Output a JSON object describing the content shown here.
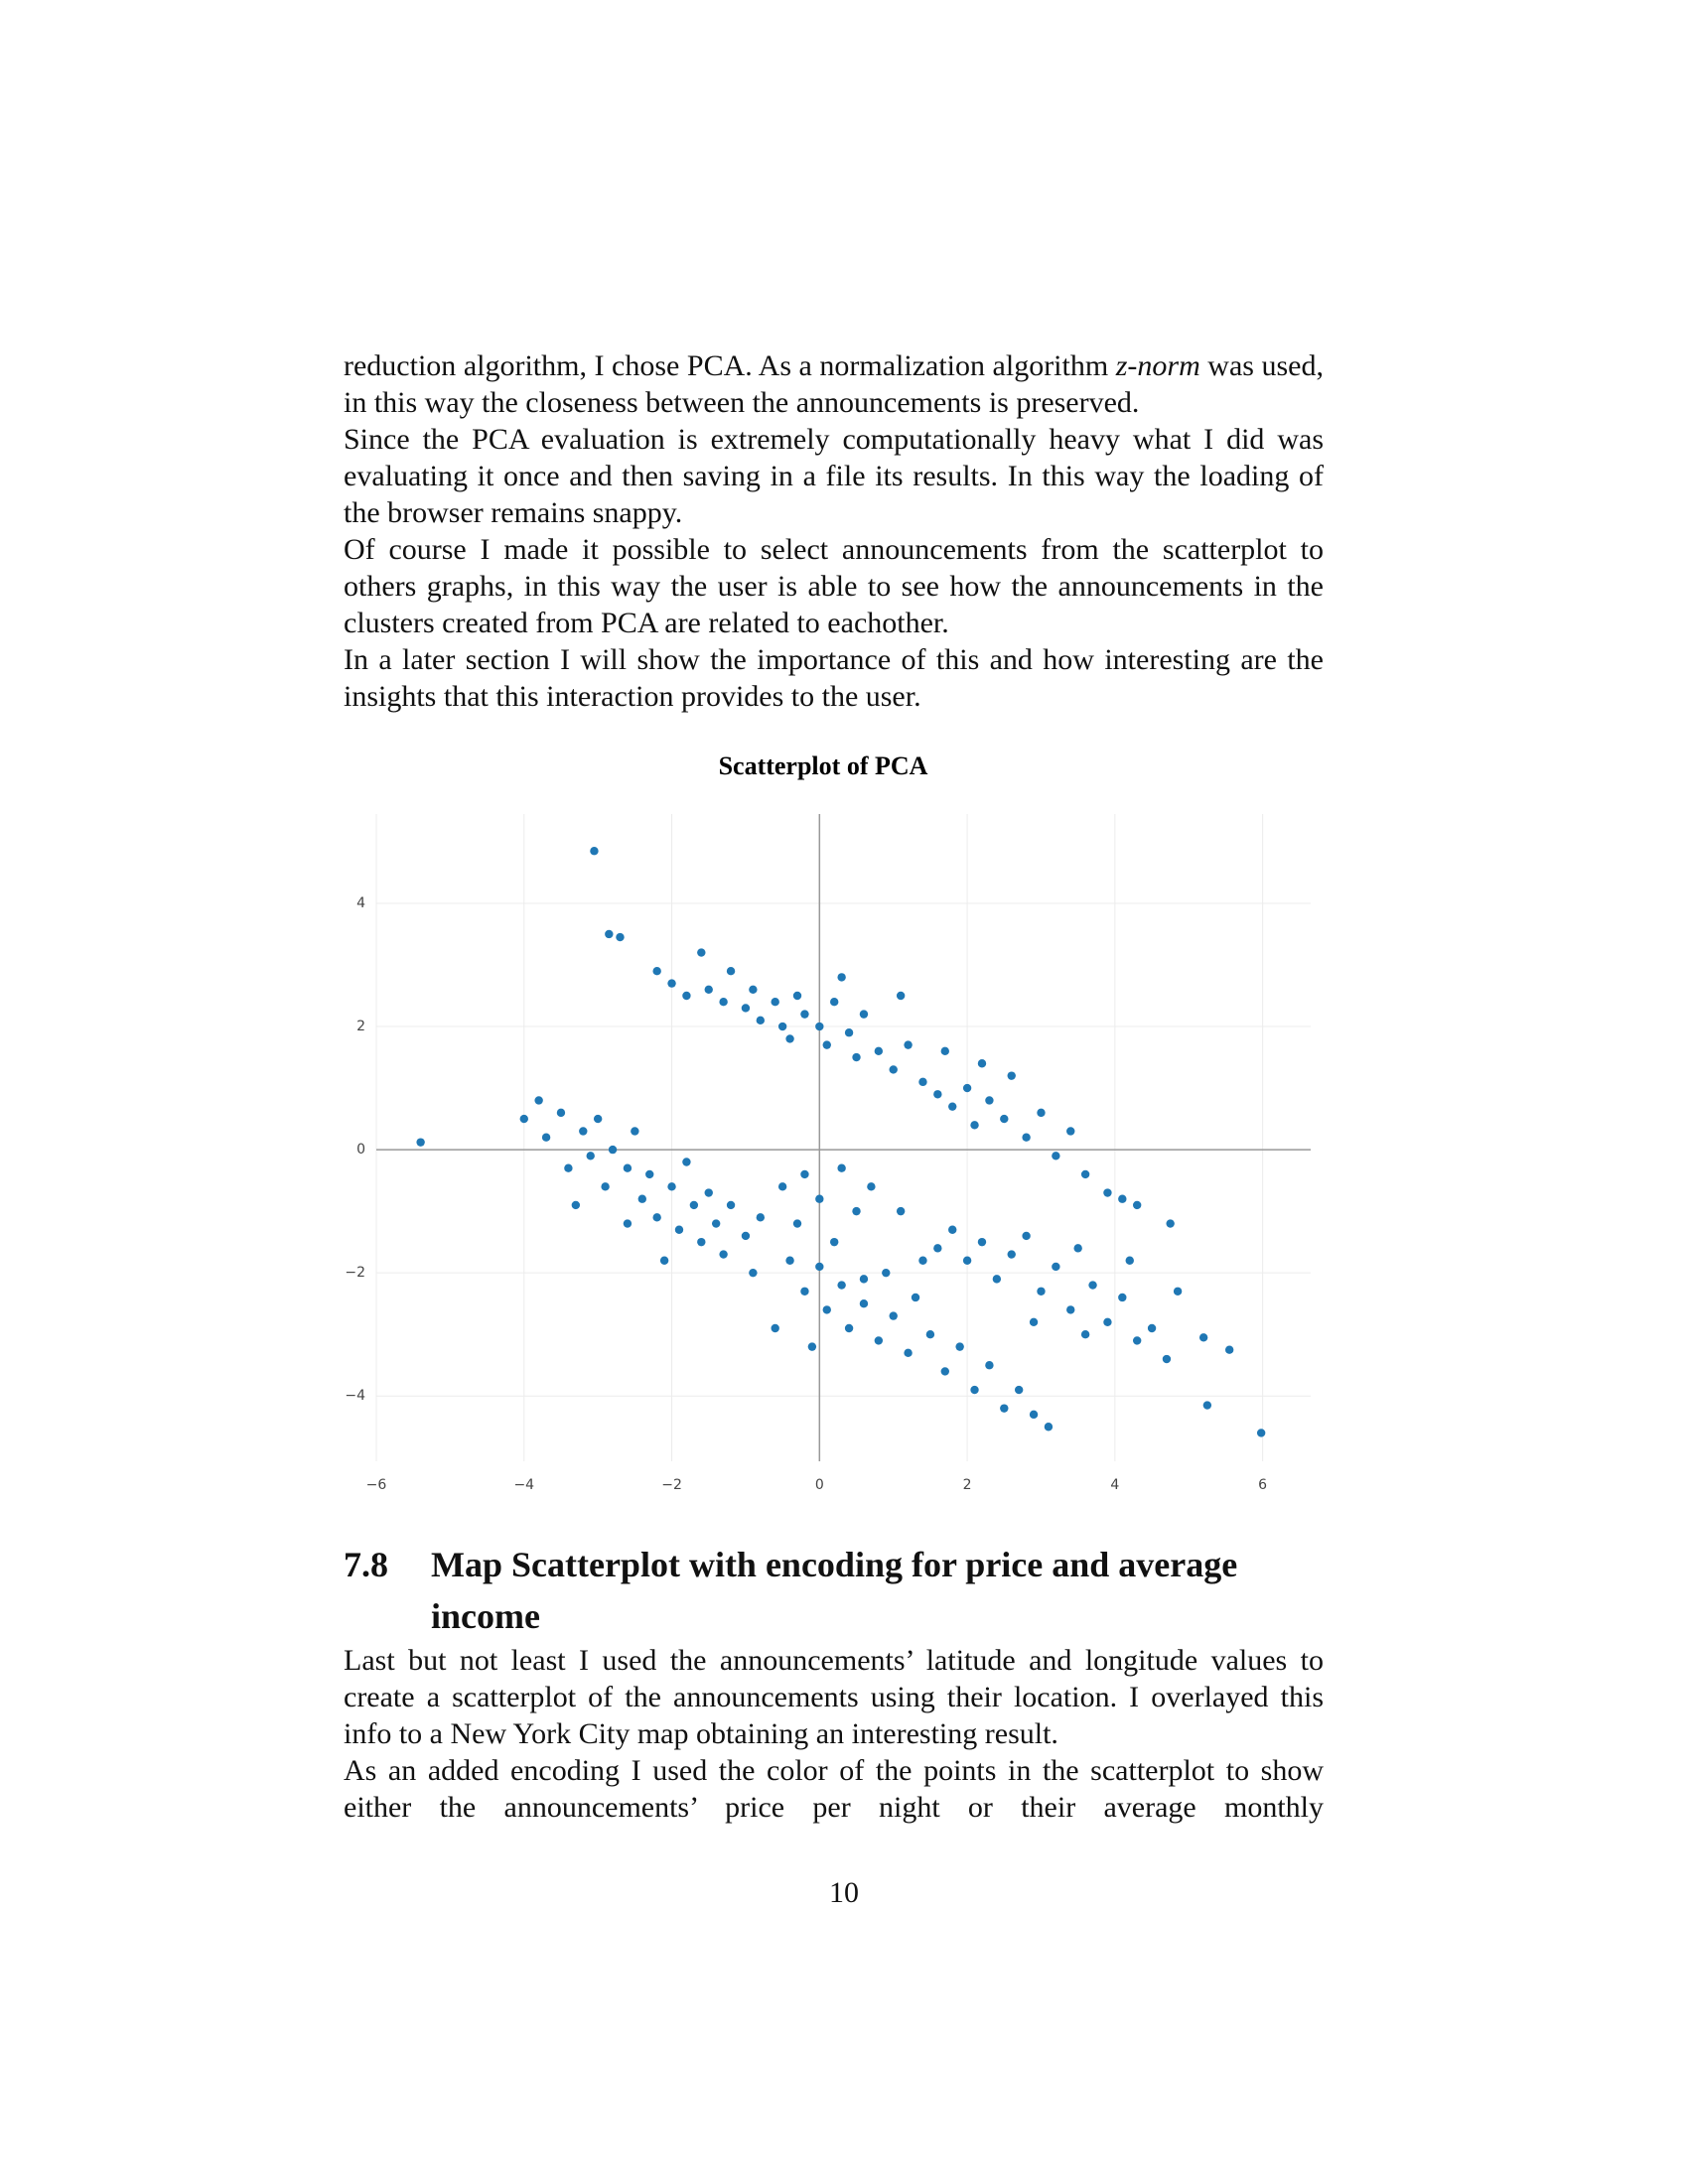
{
  "body": {
    "intro": {
      "before": "reduction algorithm, I chose PCA. As a normalization algorithm ",
      "emphasis": "z-norm",
      "after": " was used, in this way the closeness between the announcements is preserved."
    },
    "paragraphs": [
      "Since the PCA evaluation is extremely computationally heavy what I did was evaluating it once and then saving in a file its results. In this way the loading of the browser remains snappy.",
      "Of course I made it possible to select announcements from the scatterplot to others graphs, in this way the user is able to see how the announcements in the clusters created from PCA are related to eachother.",
      "In a later section I will show the importance of this and how interesting are the insights that this interaction provides to the user."
    ]
  },
  "chart_data": {
    "type": "scatter",
    "title": "Scatterplot of PCA",
    "color": "#1f77b4",
    "grid": true,
    "zeroline": true,
    "xlim": [
      -6,
      6.65
    ],
    "ylim": [
      -5.06,
      5.45
    ],
    "xticks": [
      {
        "value": -6,
        "label": "−6"
      },
      {
        "value": -4,
        "label": "−4"
      },
      {
        "value": -2,
        "label": "−2"
      },
      0,
      2,
      4,
      6
    ],
    "yticks": [
      {
        "value": -4,
        "label": "−4"
      },
      {
        "value": -2,
        "label": "−2"
      },
      0,
      2,
      4
    ],
    "x": [
      -3.05,
      -2.85,
      -2.7,
      -5.4,
      5.98,
      5.25,
      5.55,
      5.2,
      4.85,
      4.75,
      -2.2,
      -2.0,
      -1.8,
      -1.6,
      -1.5,
      -1.3,
      -1.2,
      -1.0,
      -0.9,
      -0.8,
      -0.6,
      -0.5,
      -0.4,
      -0.3,
      -0.2,
      0,
      0.1,
      0.2,
      0.3,
      0.4,
      0.5,
      0.6,
      0.8,
      1.0,
      1.1,
      1.2,
      1.4,
      1.6,
      1.7,
      1.8,
      2.0,
      2.1,
      2.2,
      2.3,
      2.5,
      2.6,
      2.8,
      3.0,
      3.2,
      3.4,
      3.6,
      3.9,
      4.1,
      4.3,
      -4.0,
      -3.8,
      -3.7,
      -3.5,
      -3.4,
      -3.2,
      -3.1,
      -3.0,
      -2.9,
      -2.8,
      -2.6,
      -2.5,
      -2.4,
      -2.3,
      -2.2,
      -2.0,
      -1.9,
      -1.8,
      -1.7,
      -1.6,
      -1.5,
      -1.4,
      -1.3,
      -1.2,
      -1.0,
      -0.9,
      -0.8,
      -2.6,
      -3.3,
      -2.1,
      -0.5,
      -0.3,
      -0.2,
      0,
      0.2,
      0.3,
      0.5,
      0.6,
      0.7,
      -0.4,
      -0.2,
      0,
      0.1,
      0.3,
      0.4,
      0.6,
      0.8,
      0.9,
      1.0,
      1.2,
      1.3,
      1.5,
      1.7,
      1.9,
      2.1,
      2.3,
      2.5,
      2.7,
      2.9,
      3.1,
      -0.6,
      -0.1,
      1.1,
      1.4,
      1.6,
      1.8,
      2.0,
      2.2,
      2.4,
      2.6,
      2.8,
      3.0,
      3.2,
      3.4,
      3.5,
      3.7,
      3.9,
      4.1,
      4.3,
      4.5,
      4.7,
      4.2,
      3.6,
      2.9
    ],
    "values": [
      4.85,
      3.5,
      3.45,
      0.12,
      -4.6,
      -4.15,
      -3.25,
      -3.05,
      -2.3,
      -1.2,
      2.9,
      2.7,
      2.5,
      3.2,
      2.6,
      2.4,
      2.9,
      2.3,
      2.6,
      2.1,
      2.4,
      2.0,
      1.8,
      2.5,
      2.2,
      2.0,
      1.7,
      2.4,
      2.8,
      1.9,
      1.5,
      2.2,
      1.6,
      1.3,
      2.5,
      1.7,
      1.1,
      0.9,
      1.6,
      0.7,
      1.0,
      0.4,
      1.4,
      0.8,
      0.5,
      1.2,
      0.2,
      0.6,
      -0.1,
      0.3,
      -0.4,
      -0.7,
      -0.8,
      -0.9,
      0.5,
      0.8,
      0.2,
      0.6,
      -0.3,
      0.3,
      -0.1,
      0.5,
      -0.6,
      0.0,
      -0.3,
      0.3,
      -0.8,
      -0.4,
      -1.1,
      -0.6,
      -1.3,
      -0.2,
      -0.9,
      -1.5,
      -0.7,
      -1.2,
      -1.7,
      -0.9,
      -1.4,
      -2.0,
      -1.1,
      -1.2,
      -0.9,
      -1.8,
      -0.6,
      -1.2,
      -0.4,
      -0.8,
      -1.5,
      -0.3,
      -1.0,
      -2.1,
      -0.6,
      -1.8,
      -2.3,
      -1.9,
      -2.6,
      -2.2,
      -2.9,
      -2.5,
      -3.1,
      -2.0,
      -2.7,
      -3.3,
      -2.4,
      -3.0,
      -3.6,
      -3.2,
      -3.9,
      -3.5,
      -4.2,
      -3.9,
      -4.3,
      -4.5,
      -2.9,
      -3.2,
      -1.0,
      -1.8,
      -1.6,
      -1.3,
      -1.8,
      -1.5,
      -2.1,
      -1.7,
      -1.4,
      -2.3,
      -1.9,
      -2.6,
      -1.6,
      -2.2,
      -2.8,
      -2.4,
      -3.1,
      -2.9,
      -3.4,
      -1.8,
      -3.0,
      -2.8
    ]
  },
  "section": {
    "number": "7.8",
    "title": "Map Scatterplot with encoding for price and average income",
    "paragraphs": [
      "Last but not least I used the announcements’ latitude and longitude values to create a scatterplot of the announcements using their location. I overlayed this info to a New York City map obtaining an interesting result.",
      "As an added encoding I used the color of the points in the scatterplot to show either the announcements’ price per night or their average monthly"
    ]
  },
  "page_number": "10"
}
